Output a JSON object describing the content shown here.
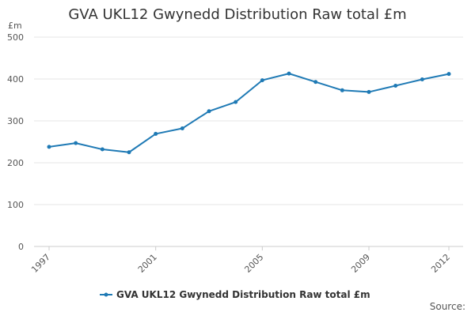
{
  "chart_data": {
    "type": "line",
    "title": "GVA UKL12 Gwynedd Distribution Raw total £m",
    "ylabel": "£m",
    "xlabel": "",
    "ylim": [
      0,
      500
    ],
    "yticks": [
      0,
      100,
      200,
      300,
      400,
      500
    ],
    "xlim": [
      1997,
      2012
    ],
    "xticks": [
      1997,
      2001,
      2005,
      2009,
      2012
    ],
    "grid": true,
    "legend_position": "bottom",
    "series": [
      {
        "name": "GVA UKL12 Gwynedd Distribution Raw total £m",
        "color": "#1f7ab5",
        "x": [
          1997,
          1998,
          1999,
          2000,
          2001,
          2002,
          2003,
          2004,
          2005,
          2006,
          2007,
          2008,
          2009,
          2010,
          2011,
          2012
        ],
        "values": [
          238,
          247,
          232,
          225,
          269,
          282,
          323,
          345,
          397,
          413,
          393,
          373,
          369,
          384,
          399,
          412
        ]
      }
    ],
    "source_label": "Source:"
  }
}
